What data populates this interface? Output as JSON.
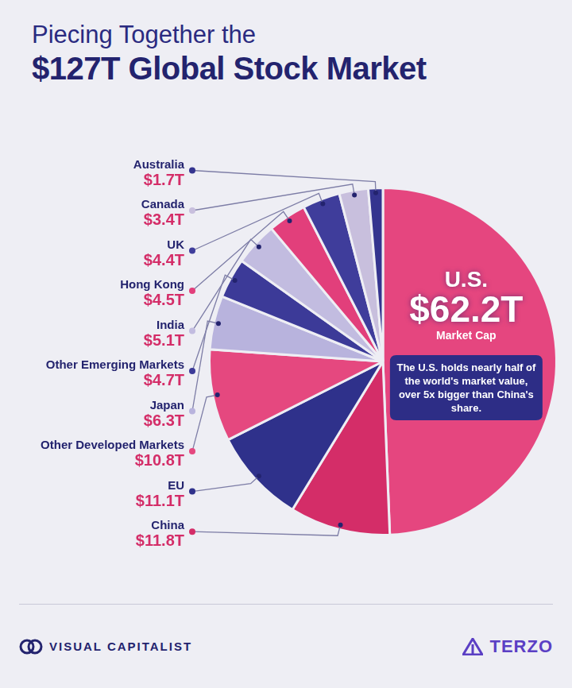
{
  "chart_data": {
    "type": "pie",
    "title": [
      "Piecing Together the",
      "$127T Global Stock Market"
    ],
    "categories": [
      "U.S.",
      "China",
      "EU",
      "Other Developed Markets",
      "Japan",
      "Other Emerging Markets",
      "India",
      "Hong Kong",
      "UK",
      "Canada",
      "Australia"
    ],
    "values": [
      62.2,
      11.8,
      11.1,
      10.8,
      6.3,
      4.7,
      5.1,
      4.5,
      4.4,
      3.4,
      1.7
    ],
    "value_labels": [
      "$62.2T",
      "$11.8T",
      "$11.1T",
      "$10.8T",
      "$6.3T",
      "$4.7T",
      "$5.1T",
      "$4.5T",
      "$4.4T",
      "$3.4T",
      "$1.7T"
    ],
    "colors": [
      "#e5467f",
      "#d42d68",
      "#2f318b",
      "#e5487f",
      "#b8b3dd",
      "#3c3a98",
      "#c2bce0",
      "#e23f7b",
      "#3f3d9b",
      "#c8bfdd",
      "#34348f"
    ],
    "data_labels": true,
    "value_caption": "Market Cap",
    "annotation": "The U.S. holds nearly half of the world's market value, over 5x bigger than China's share.",
    "footer": [
      "VISUAL CAPITALIST",
      "TERZO"
    ]
  }
}
